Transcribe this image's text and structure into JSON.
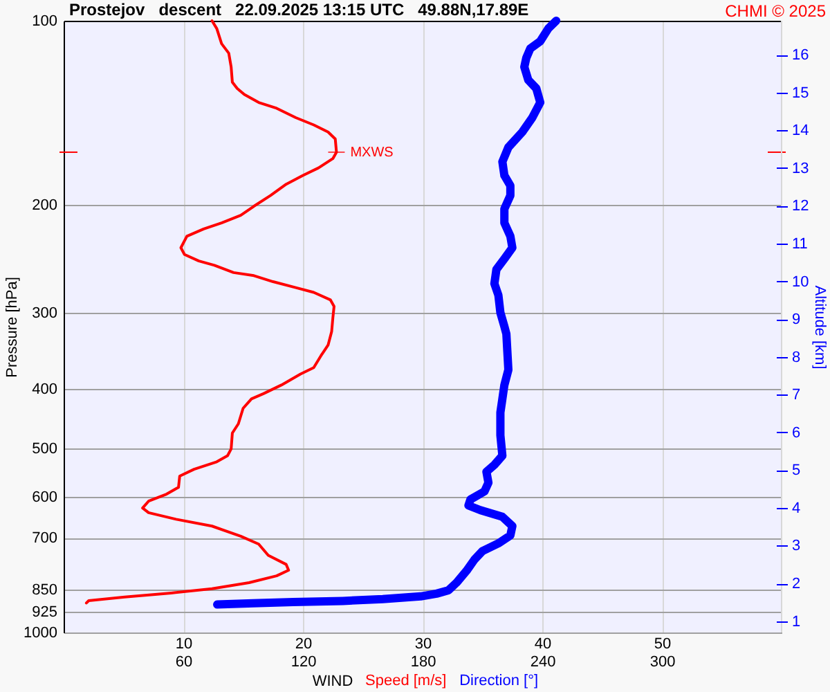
{
  "chart_data": {
    "type": "line",
    "orientation": "horizontal",
    "title": "Prostejov   descent   22.09.2025 13:15 UTC   49.88N,17.89E",
    "xlabel": "WIND",
    "ylabel": "Pressure [hPa]",
    "y2label": "Altitude [km]",
    "xlim": [
      0,
      60
    ],
    "xticks": [
      10,
      20,
      30,
      40,
      50
    ],
    "x2lim": [
      0,
      360
    ],
    "x2ticks": [
      60,
      120,
      180,
      240,
      300
    ],
    "ylim": [
      1000,
      100
    ],
    "yticks": [
      100,
      200,
      300,
      400,
      500,
      600,
      700,
      850,
      925,
      1000
    ],
    "log": "y",
    "y2lim": [
      0.7,
      16.9
    ],
    "y2ticks": [
      1,
      2,
      3,
      4,
      5,
      6,
      7,
      8,
      9,
      10,
      11,
      12,
      13,
      14,
      15,
      16
    ],
    "grid": true,
    "legend": "bottom",
    "series": [
      {
        "name": "Speed [m/s]",
        "color": "#ff0000",
        "values": [
          12.4,
          12.8,
          13.2,
          13.8,
          14.0,
          14.1,
          14.5,
          15.1,
          16.3,
          17.8,
          19.4,
          20.9,
          22.1,
          22.7,
          22.8,
          22.5,
          21.3,
          20.0,
          18.6,
          17.3,
          15.9,
          14.8,
          13.2,
          11.7,
          10.3,
          9.8,
          10.1,
          11.3,
          12.6,
          14.2,
          15.9,
          17.5,
          19.4,
          20.9,
          22.3,
          22.6,
          22.5,
          22.4,
          22.1,
          21.5,
          20.9,
          19.8,
          18.2,
          16.7,
          15.7,
          15.0,
          14.6,
          14.1,
          14.0,
          13.7,
          12.8,
          10.9,
          9.7,
          9.6,
          8.6,
          7.1,
          6.6,
          7.1,
          9.4,
          12.4,
          14.8,
          16.3,
          17.1,
          18.6,
          18.8,
          17.8,
          15.5,
          12.4,
          9.0,
          5.1,
          2.1,
          1.9
        ],
        "x": [
          100,
          103,
          109,
          113,
          119,
          126,
          129,
          132,
          136,
          139,
          144,
          148,
          152,
          156,
          164,
          168,
          174,
          179,
          185,
          193,
          201,
          208,
          214,
          219,
          225,
          235,
          241,
          247,
          251,
          258,
          261,
          267,
          273,
          278,
          286,
          293,
          306,
          322,
          339,
          353,
          369,
          378,
          394,
          407,
          415,
          430,
          456,
          472,
          501,
          514,
          526,
          541,
          555,
          579,
          594,
          610,
          626,
          637,
          653,
          670,
          696,
          717,
          748,
          774,
          791,
          808,
          829,
          848,
          862,
          875,
          887,
          895
        ]
      },
      {
        "name": "Direction [°]",
        "color": "#0000ff",
        "axis": "x2",
        "values": [
          247,
          243,
          239,
          234,
          232,
          231,
          233,
          237,
          239,
          235,
          230,
          223,
          220,
          221,
          224,
          224,
          221,
          221,
          224,
          225,
          221,
          217,
          216,
          218,
          219,
          221,
          222,
          223,
          221,
          220,
          219,
          219,
          220,
          216,
          212,
          213,
          211,
          204,
          203,
          209,
          220,
          225,
          224,
          218,
          210,
          206,
          202,
          197,
          193,
          187,
          179,
          160,
          140,
          115,
          95,
          77
        ],
        "x": [
          100,
          103,
          108,
          111,
          115,
          119,
          125,
          129,
          136,
          144,
          152,
          161,
          170,
          179,
          186,
          193,
          203,
          214,
          225,
          235,
          245,
          255,
          269,
          281,
          300,
          316,
          325,
          372,
          394,
          415,
          437,
          476,
          514,
          532,
          546,
          569,
          588,
          606,
          620,
          631,
          647,
          670,
          694,
          715,
          736,
          760,
          793,
          829,
          853,
          864,
          873,
          882,
          888,
          892,
          896,
          900
        ]
      }
    ],
    "annotations": [
      "CHMI © 2025",
      {
        "text": "MXWS",
        "x": 22.8,
        "y": 164
      }
    ]
  }
}
